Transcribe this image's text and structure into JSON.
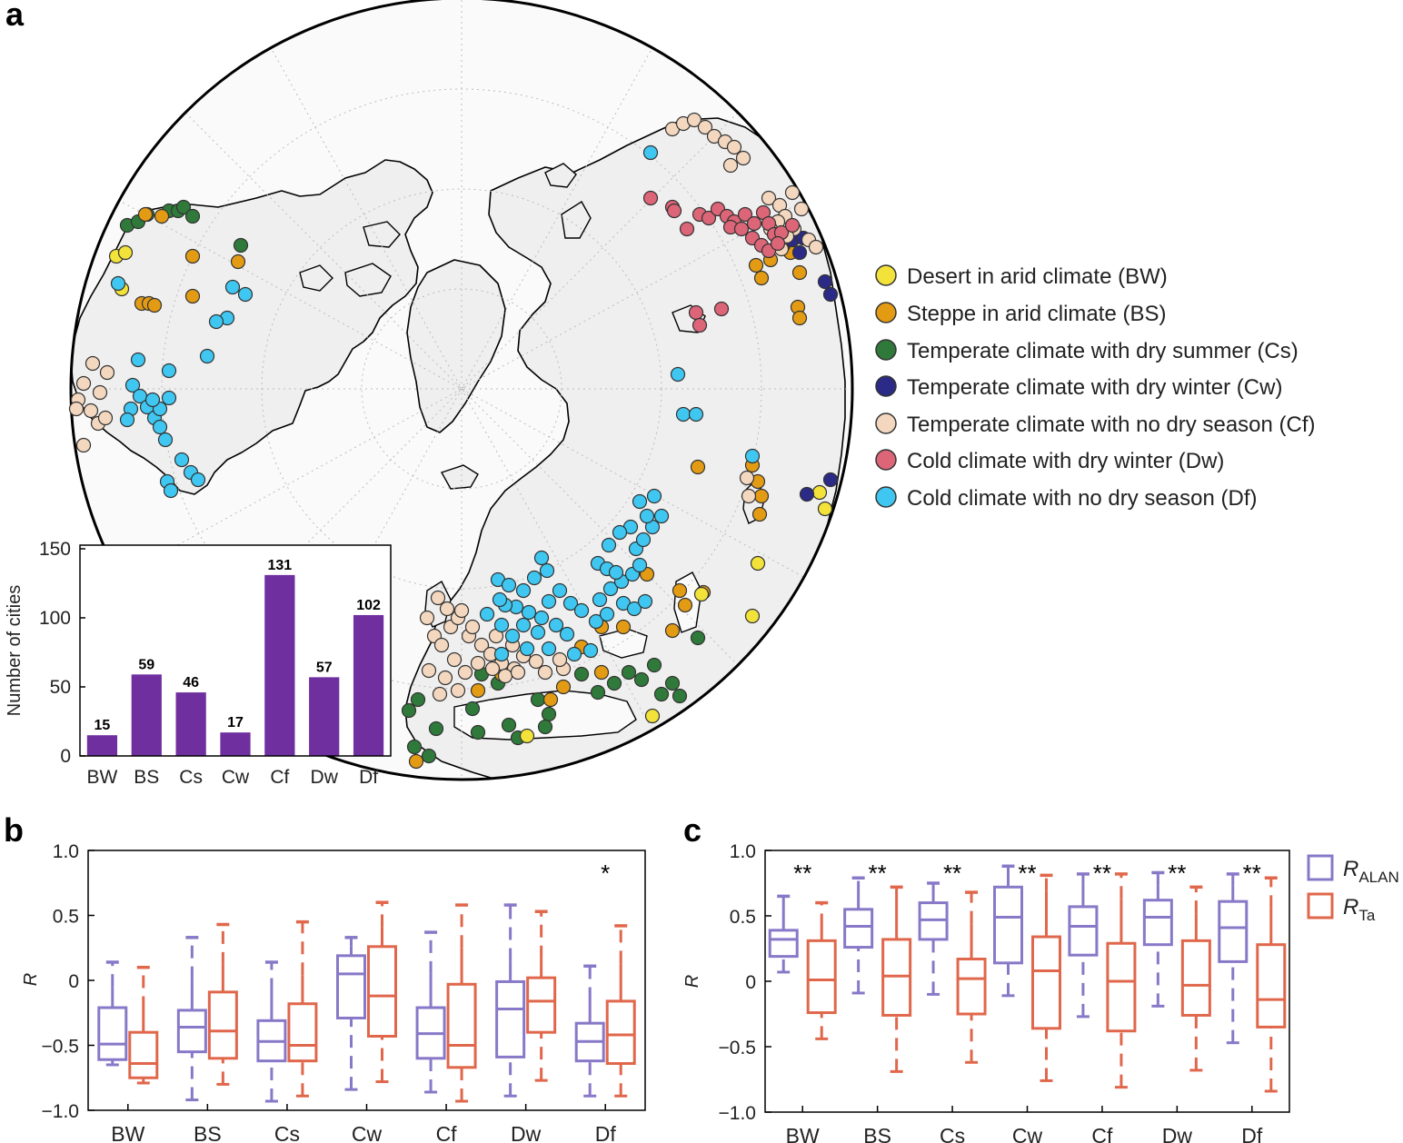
{
  "panels": {
    "a": "a",
    "b": "b",
    "c": "c"
  },
  "colors": {
    "purple": "#8878c8",
    "orange": "#e0674b",
    "bar": "#6f2f9f",
    "land": "#efefef",
    "BW": "#f2e23a",
    "BS": "#e39b14",
    "Cs": "#2f7a3a",
    "Cw": "#2b2a86",
    "Cf": "#f3d7bf",
    "Dw": "#dc6577",
    "Df": "#3fc7f1"
  },
  "legend": {
    "items": [
      {
        "key": "BW",
        "label": "Desert in arid climate (BW)"
      },
      {
        "key": "BS",
        "label": "Steppe in arid climate (BS)"
      },
      {
        "key": "Cs",
        "label": "Temperate climate with dry summer (Cs)"
      },
      {
        "key": "Cw",
        "label": "Temperate climate with dry winter (Cw)"
      },
      {
        "key": "Cf",
        "label": "Temperate climate with no dry season (Cf)"
      },
      {
        "key": "Dw",
        "label": "Cold climate with dry winter (Dw)"
      },
      {
        "key": "Df",
        "label": "Cold climate with no dry season (Df)"
      }
    ]
  },
  "legend_c": {
    "alan_main": "R",
    "alan_sub": "ALAN",
    "ta_main": "R",
    "ta_sub": "Ta"
  },
  "chart_data": [
    {
      "id": "inset",
      "type": "bar",
      "ylabel": "Number of cities",
      "categories": [
        "BW",
        "BS",
        "Cs",
        "Cw",
        "Cf",
        "Dw",
        "Df"
      ],
      "values": [
        15,
        59,
        46,
        17,
        131,
        57,
        102
      ],
      "ylim": [
        0,
        150
      ],
      "yticks": [
        0,
        50,
        100,
        150
      ]
    },
    {
      "id": "b",
      "type": "box",
      "ylabel": "R",
      "categories": [
        "BW",
        "BS",
        "Cs",
        "Cw",
        "Cf",
        "Dw",
        "Df"
      ],
      "ylim": [
        -1.0,
        1.0
      ],
      "yticks": [
        -1.0,
        -0.5,
        0,
        0.5,
        1.0
      ],
      "ytick_labels": [
        "−1.0",
        "−0.5",
        "0",
        "0.5",
        "1.0"
      ],
      "series": [
        {
          "name": "R_ALAN",
          "boxes": [
            {
              "wl": -0.65,
              "q1": -0.61,
              "med": -0.49,
              "q3": -0.21,
              "wh": -0.05,
              "cap": 0.14
            },
            {
              "wl": -0.92,
              "q1": -0.55,
              "med": -0.36,
              "q3": -0.23,
              "wh": 0.01,
              "cap": 0.33
            },
            {
              "wl": -0.93,
              "q1": -0.62,
              "med": -0.47,
              "q3": -0.31,
              "wh": -0.08,
              "cap": 0.14
            },
            {
              "wl": -0.84,
              "q1": -0.29,
              "med": 0.05,
              "q3": 0.19,
              "wh": 0.26,
              "cap": 0.33
            },
            {
              "wl": -0.86,
              "q1": -0.6,
              "med": -0.41,
              "q3": -0.21,
              "wh": 0.05,
              "cap": 0.37
            },
            {
              "wl": -0.89,
              "q1": -0.59,
              "med": -0.22,
              "q3": -0.01,
              "wh": 0.15,
              "cap": 0.58
            },
            {
              "wl": -0.89,
              "q1": -0.62,
              "med": -0.47,
              "q3": -0.33,
              "wh": -0.15,
              "cap": 0.11
            }
          ]
        },
        {
          "name": "R_Ta",
          "boxes": [
            {
              "wl": -0.79,
              "q1": -0.75,
              "med": -0.64,
              "q3": -0.4,
              "wh": -0.22,
              "cap": 0.1
            },
            {
              "wl": -0.8,
              "q1": -0.6,
              "med": -0.39,
              "q3": -0.09,
              "wh": 0.12,
              "cap": 0.43
            },
            {
              "wl": -0.89,
              "q1": -0.62,
              "med": -0.5,
              "q3": -0.18,
              "wh": 0.04,
              "cap": 0.45
            },
            {
              "wl": -0.78,
              "q1": -0.43,
              "med": -0.12,
              "q3": 0.26,
              "wh": 0.41,
              "cap": 0.6
            },
            {
              "wl": -0.93,
              "q1": -0.67,
              "med": -0.5,
              "q3": -0.03,
              "wh": 0.25,
              "cap": 0.58
            },
            {
              "wl": -0.77,
              "q1": -0.4,
              "med": -0.16,
              "q3": 0.02,
              "wh": 0.17,
              "cap": 0.53
            },
            {
              "wl": -0.89,
              "q1": -0.64,
              "med": -0.42,
              "q3": -0.16,
              "wh": 0.13,
              "cap": 0.42
            }
          ]
        }
      ],
      "annotations": [
        {
          "category": "Df",
          "text": "*"
        }
      ]
    },
    {
      "id": "c",
      "type": "box",
      "ylabel": "R",
      "categories": [
        "BW",
        "BS",
        "Cs",
        "Cw",
        "Cf",
        "Dw",
        "Df"
      ],
      "ylim": [
        -1.0,
        1.0
      ],
      "yticks": [
        -1.0,
        -0.5,
        0,
        0.5,
        1.0
      ],
      "ytick_labels": [
        "−1.0",
        "−0.5",
        "0",
        "0.5",
        "1.0"
      ],
      "series": [
        {
          "name": "R_ALAN",
          "boxes": [
            {
              "wl": 0.07,
              "q1": 0.19,
              "med": 0.32,
              "q3": 0.39,
              "wh": 0.57,
              "cap": 0.65
            },
            {
              "wl": -0.09,
              "q1": 0.26,
              "med": 0.42,
              "q3": 0.55,
              "wh": 0.67,
              "cap": 0.79
            },
            {
              "wl": -0.1,
              "q1": 0.32,
              "med": 0.47,
              "q3": 0.6,
              "wh": 0.75,
              "cap": 0.75
            },
            {
              "wl": -0.11,
              "q1": 0.14,
              "med": 0.49,
              "q3": 0.72,
              "wh": 0.82,
              "cap": 0.88
            },
            {
              "wl": -0.27,
              "q1": 0.2,
              "med": 0.42,
              "q3": 0.57,
              "wh": 0.74,
              "cap": 0.82
            },
            {
              "wl": -0.19,
              "q1": 0.28,
              "med": 0.49,
              "q3": 0.62,
              "wh": 0.73,
              "cap": 0.83
            },
            {
              "wl": -0.47,
              "q1": 0.15,
              "med": 0.41,
              "q3": 0.61,
              "wh": 0.73,
              "cap": 0.82
            }
          ]
        },
        {
          "name": "R_Ta",
          "boxes": [
            {
              "wl": -0.44,
              "q1": -0.24,
              "med": 0.01,
              "q3": 0.31,
              "wh": 0.42,
              "cap": 0.6
            },
            {
              "wl": -0.69,
              "q1": -0.26,
              "med": 0.04,
              "q3": 0.32,
              "wh": 0.66,
              "cap": 0.72
            },
            {
              "wl": -0.62,
              "q1": -0.25,
              "med": 0.02,
              "q3": 0.17,
              "wh": 0.44,
              "cap": 0.68
            },
            {
              "wl": -0.76,
              "q1": -0.36,
              "med": 0.08,
              "q3": 0.34,
              "wh": 0.69,
              "cap": 0.81
            },
            {
              "wl": -0.81,
              "q1": -0.38,
              "med": 0.0,
              "q3": 0.29,
              "wh": 0.63,
              "cap": 0.82
            },
            {
              "wl": -0.68,
              "q1": -0.26,
              "med": -0.03,
              "q3": 0.31,
              "wh": 0.52,
              "cap": 0.72
            },
            {
              "wl": -0.84,
              "q1": -0.35,
              "med": -0.14,
              "q3": 0.28,
              "wh": 0.56,
              "cap": 0.79
            }
          ]
        }
      ],
      "annotations": [
        {
          "category": "BW",
          "text": "**"
        },
        {
          "category": "BS",
          "text": "**"
        },
        {
          "category": "Cs",
          "text": "**"
        },
        {
          "category": "Cw",
          "text": "**"
        },
        {
          "category": "Cf",
          "text": "**"
        },
        {
          "category": "Dw",
          "text": "**"
        },
        {
          "category": "Df",
          "text": "**"
        }
      ]
    }
  ]
}
